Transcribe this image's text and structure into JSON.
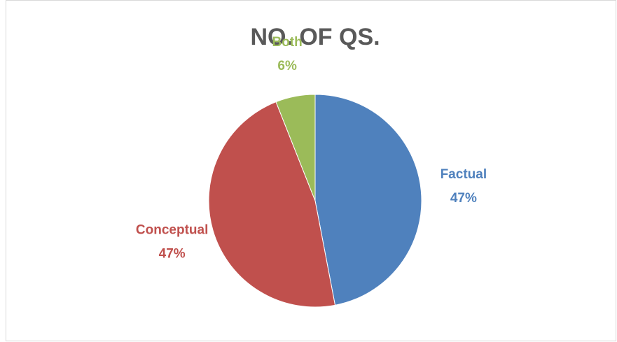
{
  "chart_data": {
    "type": "pie",
    "title": "NO. OF QS.",
    "categories": [
      "Factual",
      "Conceptual",
      "Both"
    ],
    "values": [
      47,
      47,
      6
    ],
    "value_labels": [
      "47%",
      "47%",
      "6%"
    ],
    "colors": [
      "#4f81bd",
      "#c0504d",
      "#9bbb59"
    ]
  }
}
